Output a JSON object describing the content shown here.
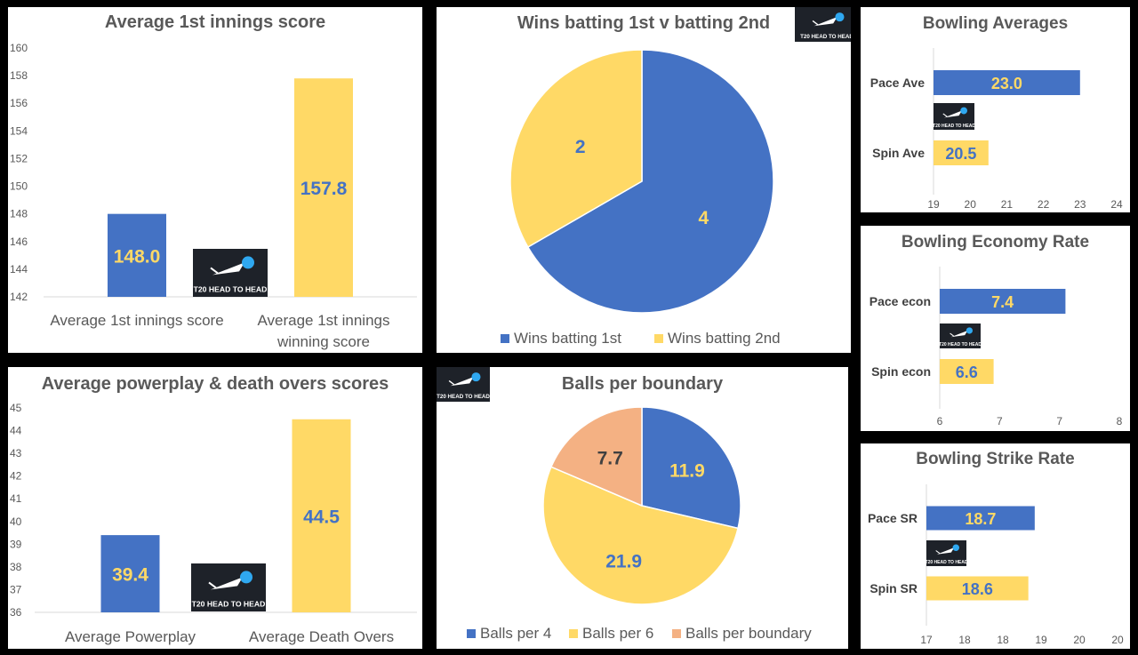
{
  "colors": {
    "blue": "#4472C4",
    "yellow": "#FFD966",
    "peach": "#F4B183",
    "label_yellow": "#FFD966",
    "label_blue": "#4472C4",
    "label_dark": "#404040",
    "logo_bg": "#1E2229",
    "logo_ball": "#2FA8F0"
  },
  "logo": {
    "text": "T20 HEAD TO HEAD",
    "icon": "cricket-ball-bat-icon"
  },
  "chart_data": [
    {
      "id": "avg-first-innings",
      "type": "bar",
      "title": "Average 1st innings score",
      "categories": [
        "Average 1st innings score",
        "Average 1st innings|winning score"
      ],
      "values": [
        148.0,
        157.8
      ],
      "value_labels": [
        "148.0",
        "157.8"
      ],
      "ylim": [
        142,
        160
      ],
      "yticks": [
        "142",
        "144",
        "146",
        "148",
        "150",
        "152",
        "154",
        "156",
        "158",
        "160"
      ],
      "grid": false
    },
    {
      "id": "wins-batting",
      "type": "pie",
      "title": "Wins batting 1st v batting 2nd",
      "labels": [
        "Wins batting 1st",
        "Wins batting 2nd"
      ],
      "values": [
        4,
        2
      ],
      "value_labels": [
        "4",
        "2"
      ],
      "legend": "bottom"
    },
    {
      "id": "bowling-averages",
      "type": "bar",
      "orientation": "horizontal",
      "title": "Bowling Averages",
      "categories": [
        "Pace Ave",
        "Spin Ave"
      ],
      "values": [
        23.0,
        20.5
      ],
      "value_labels": [
        "23.0",
        "20.5"
      ],
      "xlim": [
        19,
        24
      ],
      "xticks": [
        "19",
        "20",
        "21",
        "22",
        "23",
        "24"
      ]
    },
    {
      "id": "bowling-economy",
      "type": "bar",
      "orientation": "horizontal",
      "title": "Bowling Economy Rate",
      "categories": [
        "Pace econ",
        "Spin econ"
      ],
      "values": [
        7.4,
        6.6
      ],
      "value_labels": [
        "7.4",
        "6.6"
      ],
      "xlim": [
        6,
        8
      ],
      "xticks": [
        "6",
        "7",
        "7",
        "8"
      ]
    },
    {
      "id": "powerplay-death",
      "type": "bar",
      "title": "Average powerplay & death overs scores",
      "categories": [
        "Average Powerplay",
        "Average Death Overs"
      ],
      "values": [
        39.4,
        44.5
      ],
      "value_labels": [
        "39.4",
        "44.5"
      ],
      "ylim": [
        36,
        45
      ],
      "yticks": [
        "36",
        "37",
        "38",
        "39",
        "40",
        "41",
        "42",
        "43",
        "44",
        "45"
      ],
      "grid": false
    },
    {
      "id": "balls-per-boundary",
      "type": "pie",
      "title": "Balls per boundary",
      "labels": [
        "Balls per 4",
        "Balls per 6",
        "Balls per boundary"
      ],
      "values": [
        11.9,
        21.9,
        7.7
      ],
      "value_labels": [
        "11.9",
        "21.9",
        "7.7"
      ],
      "legend": "bottom"
    },
    {
      "id": "bowling-strike-rate",
      "type": "bar",
      "orientation": "horizontal",
      "title": "Bowling Strike Rate",
      "categories": [
        "Pace SR",
        "Spin SR"
      ],
      "values": [
        18.7,
        18.6
      ],
      "value_labels": [
        "18.7",
        "18.6"
      ],
      "xlim": [
        17,
        20
      ],
      "xticks": [
        "17",
        "18",
        "18",
        "19",
        "20",
        "20"
      ]
    }
  ]
}
